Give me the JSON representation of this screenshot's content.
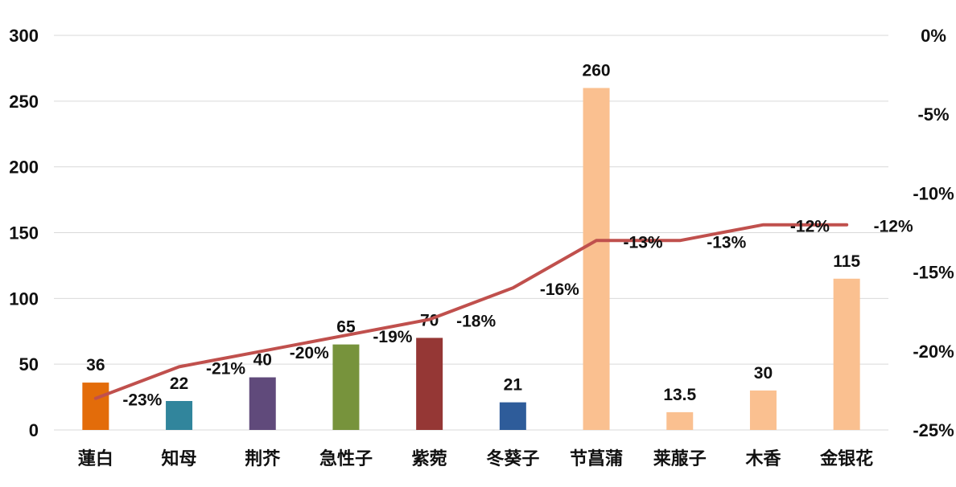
{
  "chart_data": {
    "type": "bar",
    "categories": [
      "蓮白",
      "知母",
      "荆芥",
      "急性子",
      "紫菀",
      "冬葵子",
      "节菖蒲",
      "莱菔子",
      "木香",
      "金银花"
    ],
    "series": [
      {
        "type": "bar",
        "axis": "left",
        "values": [
          36,
          22,
          40,
          65,
          70,
          21,
          260,
          13.5,
          30,
          115
        ],
        "labels": [
          "36",
          "22",
          "40",
          "65",
          "70",
          "21",
          "260",
          "13.5",
          "30",
          "115"
        ],
        "colors": [
          "#E36C0A",
          "#31859C",
          "#604A7B",
          "#77933C",
          "#953735",
          "#2E5C9A",
          "#FAC090",
          "#FAC090",
          "#FAC090",
          "#FAC090"
        ]
      },
      {
        "type": "line",
        "axis": "right",
        "values": [
          -23,
          -21,
          -20,
          -19,
          -18,
          -16,
          -13,
          -13,
          -12,
          -12
        ],
        "labels": [
          "-23%",
          "-21%",
          "-20%",
          "-19%",
          "-18%",
          "-16%",
          "-13%",
          "-13%",
          "-12%",
          "-12%"
        ],
        "color": "#C0504D"
      }
    ],
    "y_left": {
      "ticks": [
        "0",
        "50",
        "100",
        "150",
        "200",
        "250",
        "300"
      ],
      "ylim": [
        0,
        300
      ]
    },
    "y_right": {
      "ticks": [
        "-25%",
        "-20%",
        "-15%",
        "-10%",
        "-5%",
        "0%"
      ],
      "ylim": [
        -25,
        0
      ]
    },
    "grid": true,
    "title": "",
    "xlabel": "",
    "ylabel": ""
  }
}
